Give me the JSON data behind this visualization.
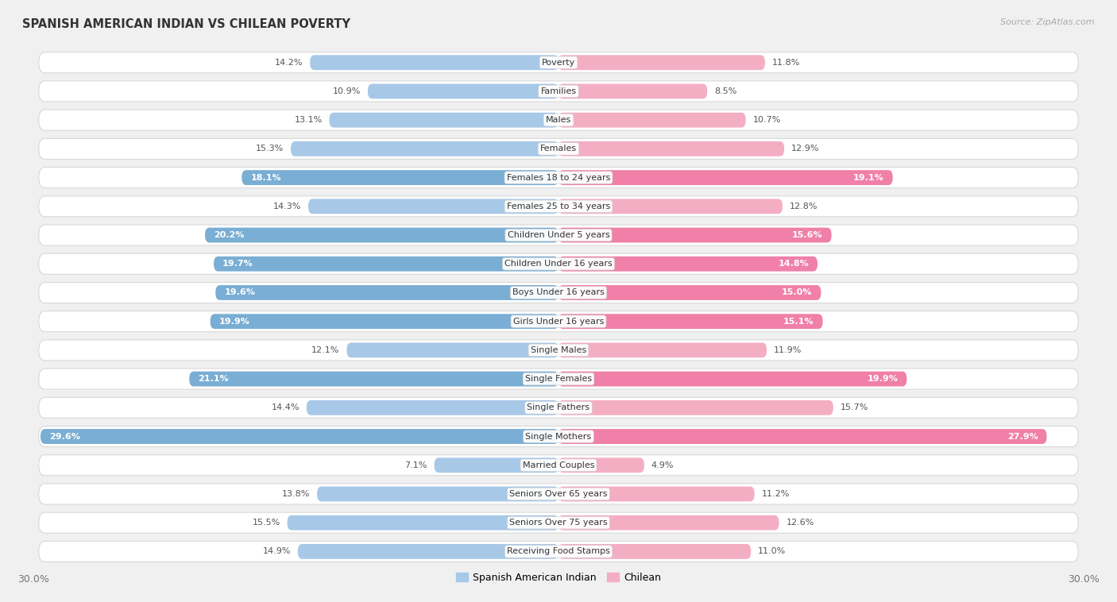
{
  "title": "SPANISH AMERICAN INDIAN VS CHILEAN POVERTY",
  "source": "Source: ZipAtlas.com",
  "categories": [
    "Poverty",
    "Families",
    "Males",
    "Females",
    "Females 18 to 24 years",
    "Females 25 to 34 years",
    "Children Under 5 years",
    "Children Under 16 years",
    "Boys Under 16 years",
    "Girls Under 16 years",
    "Single Males",
    "Single Females",
    "Single Fathers",
    "Single Mothers",
    "Married Couples",
    "Seniors Over 65 years",
    "Seniors Over 75 years",
    "Receiving Food Stamps"
  ],
  "left_values": [
    14.2,
    10.9,
    13.1,
    15.3,
    18.1,
    14.3,
    20.2,
    19.7,
    19.6,
    19.9,
    12.1,
    21.1,
    14.4,
    29.6,
    7.1,
    13.8,
    15.5,
    14.9
  ],
  "right_values": [
    11.8,
    8.5,
    10.7,
    12.9,
    19.1,
    12.8,
    15.6,
    14.8,
    15.0,
    15.1,
    11.9,
    19.9,
    15.7,
    27.9,
    4.9,
    11.2,
    12.6,
    11.0
  ],
  "left_color": "#a8c8e8",
  "right_color": "#f4aec4",
  "left_highlight_color": "#7aaed4",
  "right_highlight_color": "#f080a8",
  "highlight_indices": [
    4,
    6,
    7,
    8,
    9,
    11,
    13
  ],
  "left_label": "Spanish American Indian",
  "right_label": "Chilean",
  "bar_height": 0.52,
  "xlim": 30.0,
  "background_color": "#f0f0f0",
  "row_bg_color": "#ffffff",
  "row_border_color": "#d8d8d8",
  "label_fontsize": 8.0,
  "value_fontsize": 8.0,
  "title_fontsize": 10.5
}
